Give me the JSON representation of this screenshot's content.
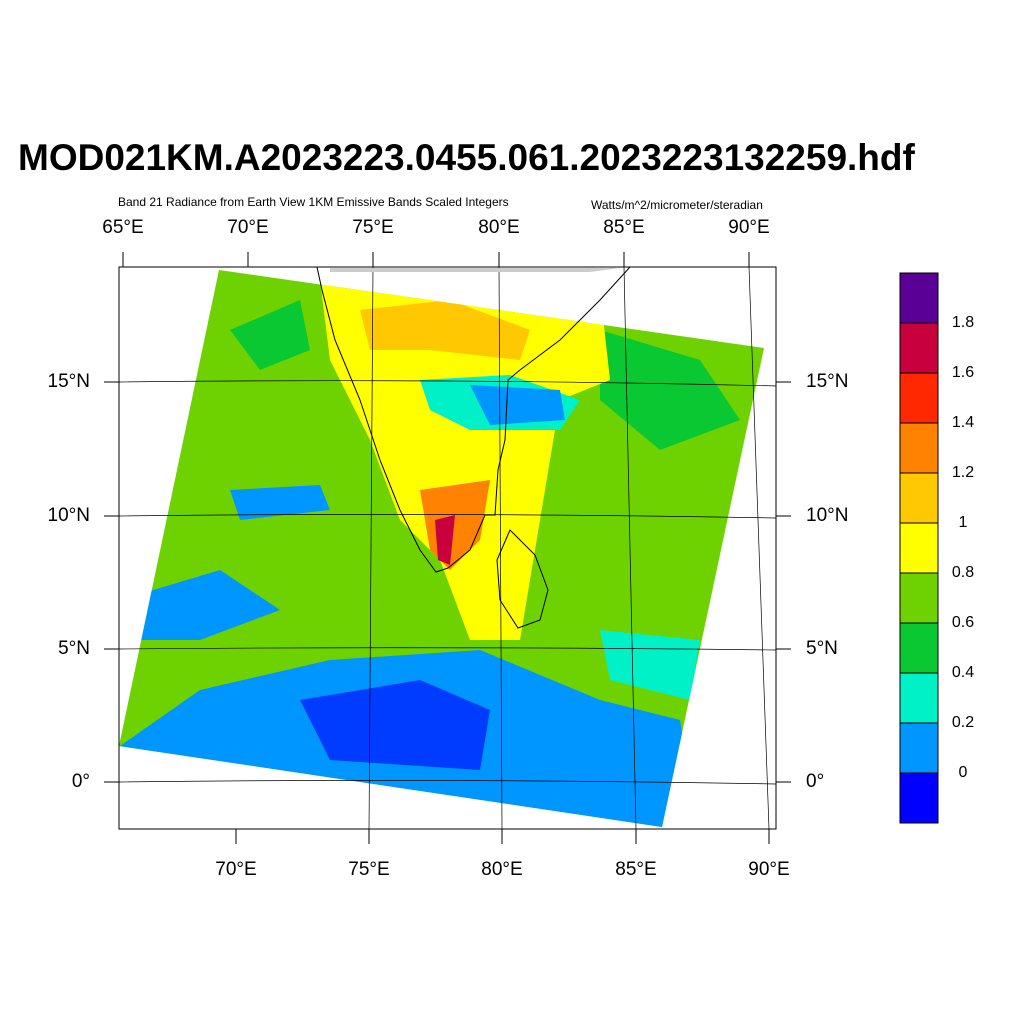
{
  "map": {
    "title": "MOD021KM.A2023223.0455.061.2023223132259.hdf",
    "subtitle": "Band 21 Radiance from Earth View 1KM Emissive Bands Scaled Integers",
    "units": "Watts/m^2/micrometer/steradian",
    "top_axis_labels": [
      "65°E",
      "70°E",
      "75°E",
      "80°E",
      "85°E",
      "90°E"
    ],
    "bottom_axis_labels": [
      "70°E",
      "75°E",
      "80°E",
      "85°E",
      "90°E"
    ],
    "left_axis_labels": [
      "15°N",
      "10°N",
      "5°N",
      "0°"
    ],
    "right_axis_labels": [
      "15°N",
      "10°N",
      "5°N",
      "0°"
    ],
    "colorbar": {
      "colors": [
        "#5a0096",
        "#c8003c",
        "#ff2800",
        "#ff8200",
        "#ffc800",
        "#ffff00",
        "#6ed200",
        "#0ac832",
        "#00f0c8",
        "#0096ff",
        "#0000ff"
      ],
      "labels": [
        1.8,
        1.6,
        1.4,
        1.2,
        1,
        0.8,
        0.6,
        0.4,
        0.2,
        0
      ]
    }
  }
}
